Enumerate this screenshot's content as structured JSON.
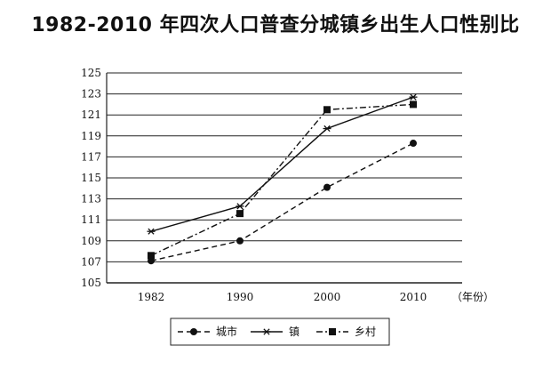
{
  "chart_data": {
    "type": "line",
    "title": "1982-2010 年四次人口普查分城镇乡出生人口性别比",
    "x": [
      "1982",
      "1990",
      "2000",
      "2010"
    ],
    "x_unit": "（年份）",
    "ylim": [
      105,
      125
    ],
    "yticks": [
      105,
      107,
      109,
      111,
      113,
      115,
      117,
      119,
      121,
      123,
      125
    ],
    "grid": true,
    "legend_position": "bottom",
    "series": [
      {
        "name": "城市",
        "values": [
          107.1,
          109.0,
          114.1,
          118.3
        ],
        "marker": "circle",
        "line": "dashed",
        "color": "#111111"
      },
      {
        "name": "镇",
        "values": [
          109.9,
          112.3,
          119.7,
          122.7
        ],
        "marker": "star",
        "line": "solid",
        "color": "#111111"
      },
      {
        "name": "乡村",
        "values": [
          107.6,
          111.6,
          121.5,
          122.0
        ],
        "marker": "square",
        "line": "dashdot",
        "color": "#111111"
      }
    ]
  }
}
